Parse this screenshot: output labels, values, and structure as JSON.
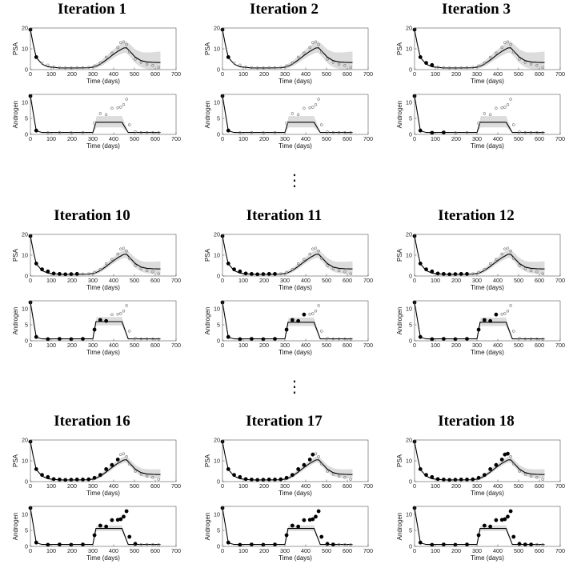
{
  "separator": "⋮",
  "colors": {
    "band": "#dcdcdc",
    "line": "#000000",
    "observed": "#000000",
    "future": "#777777"
  },
  "chart_data": [
    {
      "type": "scatter",
      "title": "Iteration 1",
      "n_observed": 2,
      "psa_band": "wide",
      "androgen_band": "wide",
      "androgen_peak": 3.8
    },
    {
      "type": "scatter",
      "title": "Iteration 2",
      "n_observed": 2,
      "psa_band": "wide",
      "androgen_band": "wide",
      "androgen_peak": 3.8
    },
    {
      "type": "scatter",
      "title": "Iteration 3",
      "n_observed": 4,
      "psa_band": "wide",
      "androgen_band": "wide",
      "androgen_peak": 3.8
    },
    {
      "type": "scatter",
      "title": "Iteration 10",
      "n_observed": 9,
      "psa_band": "mid",
      "androgen_band": "mid",
      "androgen_peak": 6.0
    },
    {
      "type": "scatter",
      "title": "Iteration 11",
      "n_observed": 10,
      "psa_band": "mid",
      "androgen_band": "mid",
      "androgen_peak": 5.8
    },
    {
      "type": "scatter",
      "title": "Iteration 12",
      "n_observed": 10,
      "psa_band": "mid",
      "androgen_band": "mid",
      "androgen_peak": 5.8
    },
    {
      "type": "scatter",
      "title": "Iteration 16",
      "n_observed": 16,
      "psa_band": "narrow",
      "androgen_band": "narrow",
      "androgen_peak": 5.6
    },
    {
      "type": "scatter",
      "title": "Iteration 17",
      "n_observed": 17,
      "psa_band": "narrow",
      "androgen_band": "narrow",
      "androgen_peak": 5.6
    },
    {
      "type": "scatter",
      "title": "Iteration 18",
      "n_observed": 18,
      "psa_band": "narrow",
      "androgen_band": "narrow",
      "androgen_peak": 5.6
    }
  ],
  "shared": {
    "psa_ylabel": "PSA",
    "androgen_ylabel": "Androgen",
    "xlabel": "Time (days)",
    "x_ticks": [
      0,
      100,
      200,
      300,
      400,
      500,
      600,
      700
    ],
    "psa_yticks": [
      0,
      10,
      20
    ],
    "androgen_yticks": [
      0,
      5,
      10
    ],
    "psa_ylim": [
      0,
      20
    ],
    "androgen_ylim": [
      0,
      12.5
    ],
    "xlim": [
      0,
      700
    ],
    "psa_obs": [
      [
        0,
        19.2
      ],
      [
        28,
        6.0
      ],
      [
        56,
        3.2
      ],
      [
        84,
        2.2
      ],
      [
        112,
        1.2
      ],
      [
        140,
        1.0
      ],
      [
        168,
        0.8
      ],
      [
        196,
        0.9
      ],
      [
        224,
        1.0
      ],
      [
        252,
        1.0
      ],
      [
        280,
        1.1
      ],
      [
        308,
        1.8
      ],
      [
        336,
        3.2
      ],
      [
        364,
        6.0
      ],
      [
        392,
        8.0
      ],
      [
        420,
        10.6
      ],
      [
        434,
        13.0
      ],
      [
        448,
        13.4
      ],
      [
        462,
        12.0
      ],
      [
        476,
        8.5
      ],
      [
        504,
        5.0
      ],
      [
        532,
        3.5
      ],
      [
        560,
        2.6
      ],
      [
        588,
        2.0
      ],
      [
        616,
        1.1
      ]
    ],
    "androgen_obs": [
      [
        0,
        12.0
      ],
      [
        28,
        1.2
      ],
      [
        84,
        0.5
      ],
      [
        140,
        0.6
      ],
      [
        196,
        0.5
      ],
      [
        252,
        0.6
      ],
      [
        308,
        3.5
      ],
      [
        336,
        6.5
      ],
      [
        364,
        6.2
      ],
      [
        392,
        8.2
      ],
      [
        420,
        8.3
      ],
      [
        434,
        8.5
      ],
      [
        448,
        9.3
      ],
      [
        462,
        11.0
      ],
      [
        476,
        3.0
      ],
      [
        504,
        0.8
      ],
      [
        532,
        0.6
      ],
      [
        560,
        0.6
      ],
      [
        588,
        0.6
      ],
      [
        616,
        0.5
      ]
    ],
    "psa_fit": [
      [
        0,
        19.2
      ],
      [
        14,
        12
      ],
      [
        28,
        5.8
      ],
      [
        56,
        2.6
      ],
      [
        84,
        1.4
      ],
      [
        140,
        0.8
      ],
      [
        224,
        0.8
      ],
      [
        280,
        0.9
      ],
      [
        308,
        1.3
      ],
      [
        336,
        2.6
      ],
      [
        364,
        4.6
      ],
      [
        392,
        6.8
      ],
      [
        420,
        8.8
      ],
      [
        448,
        10.4
      ],
      [
        462,
        10.5
      ],
      [
        476,
        9.0
      ],
      [
        504,
        6.0
      ],
      [
        532,
        4.3
      ],
      [
        560,
        3.7
      ],
      [
        588,
        3.5
      ],
      [
        625,
        3.4
      ]
    ],
    "androgen_fit": [
      [
        0,
        12.0
      ],
      [
        28,
        1.1
      ],
      [
        56,
        0.6
      ],
      [
        280,
        0.6
      ],
      [
        300,
        0.6
      ],
      [
        315,
        3.8
      ],
      [
        440,
        3.8
      ],
      [
        470,
        0.6
      ],
      [
        625,
        0.6
      ]
    ]
  }
}
